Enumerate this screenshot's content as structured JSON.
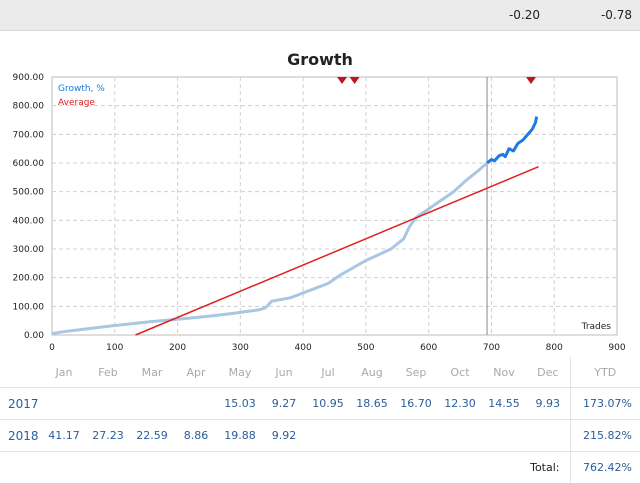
{
  "topbar": {
    "values": [
      "-0.20",
      "-0.78"
    ]
  },
  "chart_data": {
    "type": "line",
    "title": "Growth",
    "xlabel": "Trades",
    "xlim": [
      0,
      900
    ],
    "ylim": [
      0,
      900
    ],
    "xticks": [
      "0",
      "100",
      "200",
      "300",
      "400",
      "500",
      "600",
      "700",
      "800",
      "900"
    ],
    "yticks": [
      "0.00",
      "100.00",
      "200.00",
      "300.00",
      "400.00",
      "500.00",
      "600.00",
      "700.00",
      "800.00",
      "900.00"
    ],
    "grid": true,
    "legend_position": "top-left",
    "vertical_marker_x": 693,
    "markers_x": [
      462,
      482,
      763
    ],
    "series": [
      {
        "name": "Growth, %",
        "color": "#a9c6e3",
        "x": [
          0,
          20,
          50,
          80,
          100,
          130,
          160,
          200,
          230,
          260,
          290,
          310,
          330,
          340,
          350,
          380,
          410,
          440,
          460,
          480,
          500,
          520,
          540,
          560,
          570,
          580,
          600,
          620,
          640,
          660,
          680,
          693
        ],
        "y": [
          5,
          12,
          20,
          28,
          33,
          40,
          47,
          55,
          61,
          68,
          76,
          82,
          88,
          95,
          118,
          130,
          155,
          180,
          210,
          235,
          260,
          280,
          300,
          335,
          380,
          410,
          440,
          470,
          500,
          540,
          575,
          600
        ]
      },
      {
        "name": "",
        "color": "#1e7ae0",
        "x": [
          693,
          700,
          705,
          712,
          718,
          722,
          728,
          735,
          742,
          750,
          758,
          765,
          770,
          772
        ],
        "y": [
          600,
          612,
          608,
          625,
          630,
          622,
          650,
          642,
          668,
          680,
          700,
          718,
          740,
          762
        ]
      },
      {
        "name": "Average",
        "color": "#e02020",
        "x": [
          133,
          775
        ],
        "y": [
          0,
          587
        ]
      }
    ]
  },
  "table": {
    "months": [
      "Jan",
      "Feb",
      "Mar",
      "Apr",
      "May",
      "Jun",
      "Jul",
      "Aug",
      "Sep",
      "Oct",
      "Nov",
      "Dec"
    ],
    "ytd_label": "YTD",
    "rows": [
      {
        "year": "2017",
        "values": [
          "",
          "",
          "",
          "",
          "15.03",
          "9.27",
          "10.95",
          "18.65",
          "16.70",
          "12.30",
          "14.55",
          "9.93"
        ],
        "ytd": "173.07%"
      },
      {
        "year": "2018",
        "values": [
          "41.17",
          "27.23",
          "22.59",
          "8.86",
          "19.88",
          "9.92",
          "",
          "",
          "",
          "",
          "",
          ""
        ],
        "ytd": "215.82%"
      }
    ],
    "total_label": "Total:",
    "total_value": "762.42%"
  }
}
